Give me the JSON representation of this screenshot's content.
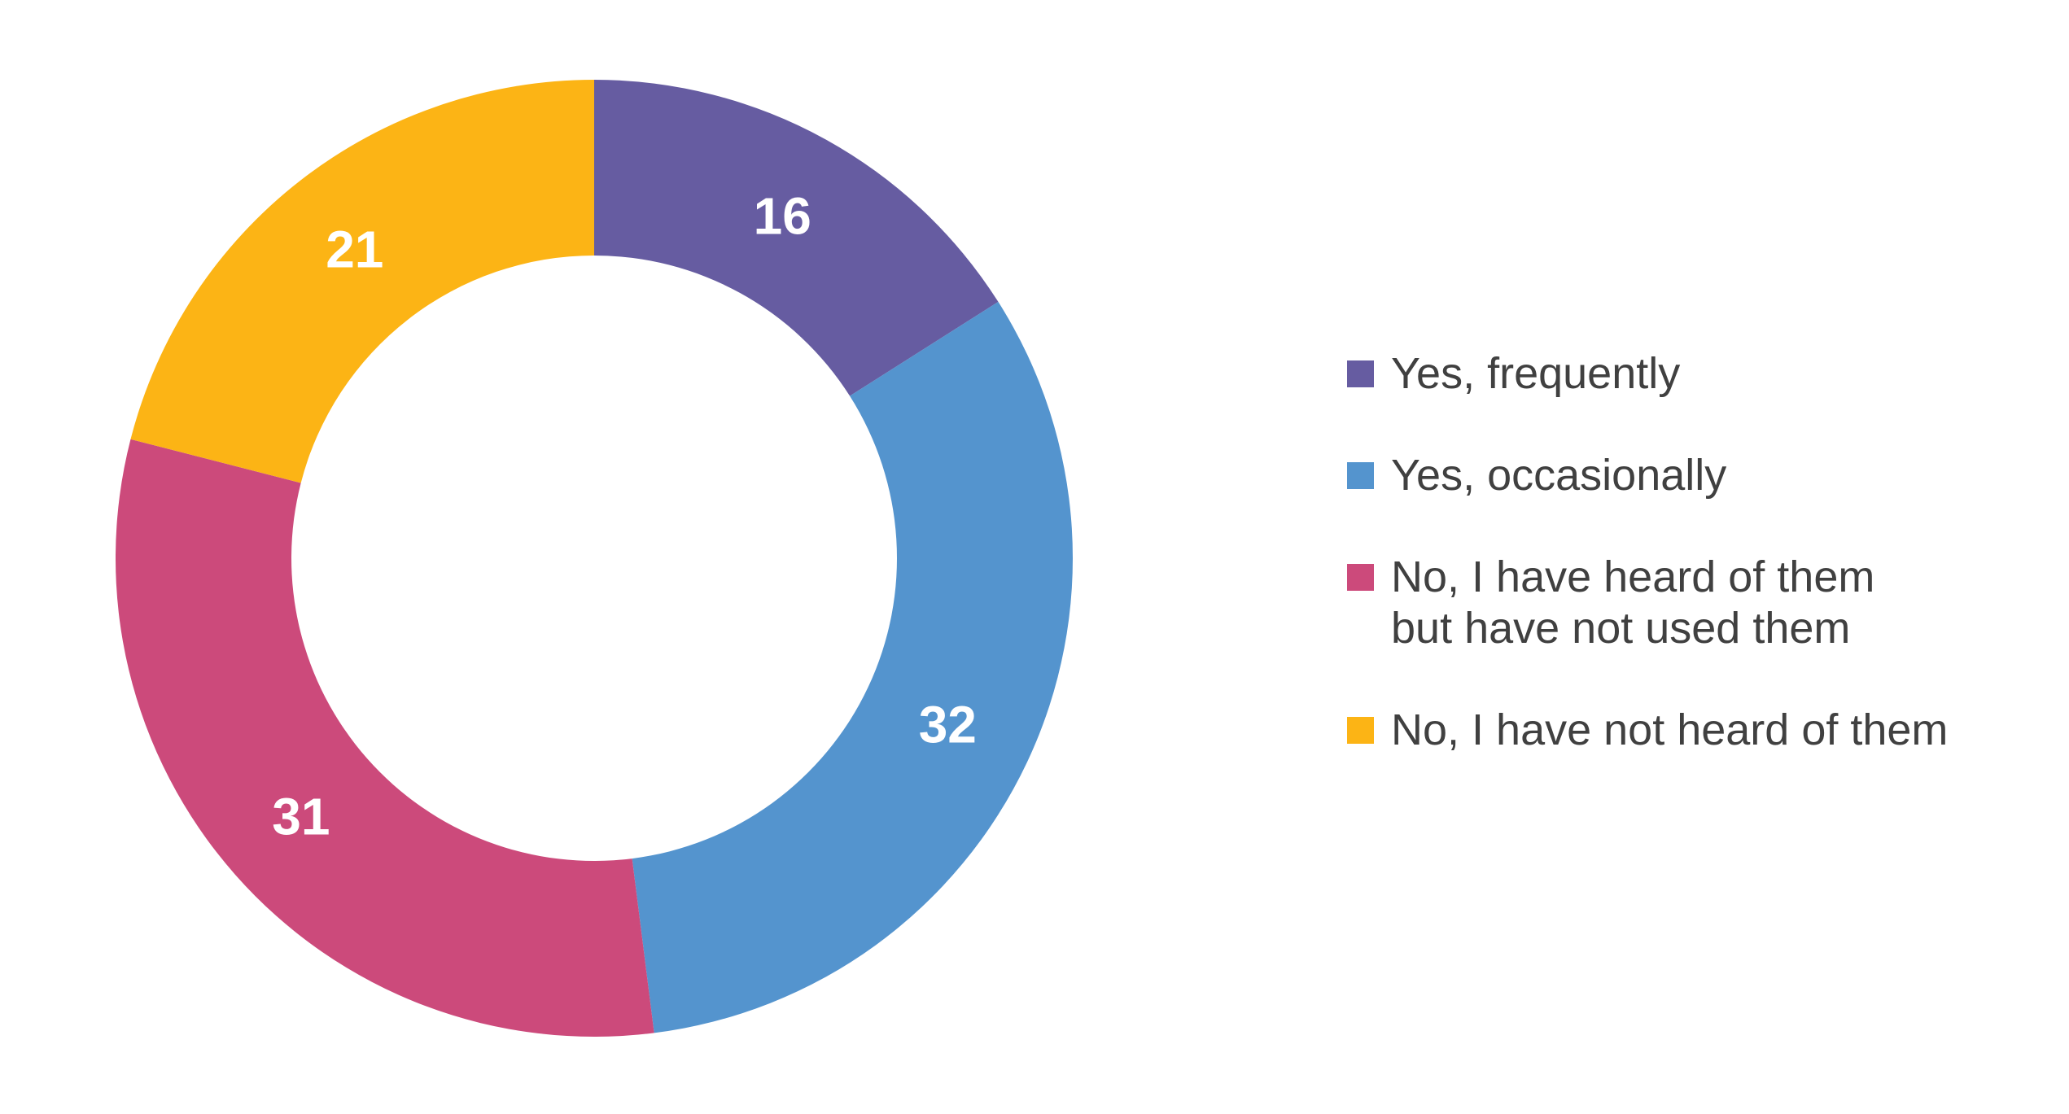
{
  "page": {
    "background": "#FFFFFF"
  },
  "chart_data": {
    "type": "pie",
    "subtype": "donut",
    "title": "",
    "start_angle_deg": 0,
    "direction": "clockwise",
    "values_are": "percent",
    "total": 100,
    "categories": [
      "Yes, frequently",
      "Yes, occasionally",
      "No, I have heard of them but have not used them",
      "No, I have not heard of them"
    ],
    "values": [
      16,
      32,
      31,
      21
    ],
    "segments": [
      {
        "label": "Yes, frequently",
        "label_lines": [
          "Yes, frequently"
        ],
        "value": 16,
        "color": "#665CA1"
      },
      {
        "label": "Yes, occasionally",
        "label_lines": [
          "Yes, occasionally"
        ],
        "value": 32,
        "color": "#5494CE"
      },
      {
        "label": "No, I have heard of them but have not used them",
        "label_lines": [
          "No, I have heard of them",
          "but have not used them"
        ],
        "value": 31,
        "color": "#CC4A7B"
      },
      {
        "label": "No, I have not heard of them",
        "label_lines": [
          "No, I have not heard of them"
        ],
        "value": 21,
        "color": "#FCB415"
      }
    ],
    "value_labels": {
      "color": "#FFFFFF",
      "position": "inside-ring"
    },
    "legend": {
      "position": "right",
      "marker": "square",
      "text_color": "#404040"
    }
  }
}
